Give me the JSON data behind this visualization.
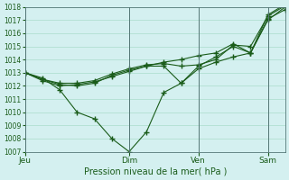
{
  "title": "Pression niveau de la mer( hPa )",
  "background_color": "#d4f0f0",
  "grid_color": "#aaddcc",
  "line_color": "#1a5c1a",
  "ylim": [
    1007,
    1018
  ],
  "yticks": [
    1007,
    1008,
    1009,
    1010,
    1011,
    1012,
    1013,
    1014,
    1015,
    1016,
    1017,
    1018
  ],
  "xtick_labels": [
    "Jeu",
    "Dim",
    "Ven",
    "Sam"
  ],
  "xtick_positions": [
    0,
    3,
    5,
    7
  ],
  "series": [
    {
      "x": [
        0,
        0.5,
        1.0,
        1.5,
        2.0,
        2.5,
        3.0,
        3.5,
        4.0,
        4.5,
        5.0,
        5.5,
        6.0,
        6.5,
        7.0,
        7.5
      ],
      "y": [
        1013.0,
        1012.6,
        1011.7,
        1010.0,
        1009.5,
        1008.0,
        1007.0,
        1008.5,
        1011.5,
        1012.2,
        1013.5,
        1014.2,
        1015.0,
        1014.5,
        1017.0,
        1018.0
      ]
    },
    {
      "x": [
        0,
        0.5,
        1.0,
        1.5,
        2.0,
        2.5,
        3.0,
        3.5,
        4.0,
        4.5,
        5.0,
        5.5,
        6.0,
        6.5,
        7.0,
        7.5
      ],
      "y": [
        1013.0,
        1012.5,
        1012.1,
        1012.0,
        1012.2,
        1012.8,
        1013.2,
        1013.5,
        1013.5,
        1012.2,
        1013.3,
        1013.8,
        1014.2,
        1014.5,
        1017.1,
        1017.8
      ]
    },
    {
      "x": [
        0,
        0.5,
        1.0,
        1.5,
        2.0,
        2.5,
        3.0,
        3.5,
        4.0,
        4.5,
        5.0,
        5.5,
        6.0,
        6.5,
        7.0,
        7.5
      ],
      "y": [
        1013.0,
        1012.5,
        1012.2,
        1012.2,
        1012.4,
        1012.9,
        1013.3,
        1013.6,
        1013.7,
        1013.5,
        1013.6,
        1014.0,
        1015.1,
        1015.0,
        1017.3,
        1018.1
      ]
    },
    {
      "x": [
        0,
        0.5,
        1.0,
        1.5,
        2.0,
        2.5,
        3.0,
        3.5,
        4.0,
        4.5,
        5.0,
        5.5,
        6.0,
        6.5,
        7.0,
        7.5
      ],
      "y": [
        1013.0,
        1012.4,
        1012.0,
        1012.1,
        1012.3,
        1012.7,
        1013.1,
        1013.5,
        1013.8,
        1014.0,
        1014.3,
        1014.5,
        1015.2,
        1014.5,
        1017.4,
        1018.2
      ]
    }
  ],
  "vline_positions": [
    0,
    3,
    5,
    7
  ],
  "xlim": [
    0,
    7.5
  ]
}
